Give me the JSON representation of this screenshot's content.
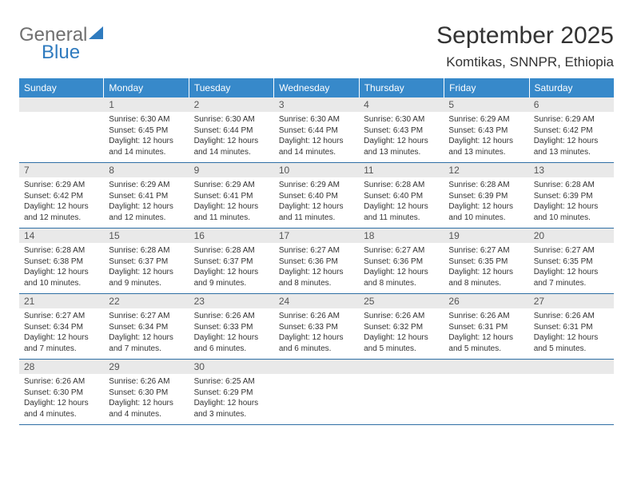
{
  "logo": {
    "word1": "General",
    "word2": "Blue",
    "gray_color": "#707070",
    "blue_color": "#2f7bbf"
  },
  "title": "September 2025",
  "location": "Komtikas, SNNPR, Ethiopia",
  "colors": {
    "header_bg": "#3789ca",
    "header_text": "#ffffff",
    "daynum_bg": "#e9e9e9",
    "text": "#333333",
    "week_border": "#2f6fa5"
  },
  "fonts": {
    "title_size": 30,
    "location_size": 17,
    "dayheader_size": 12,
    "body_size": 10
  },
  "day_headers": [
    "Sunday",
    "Monday",
    "Tuesday",
    "Wednesday",
    "Thursday",
    "Friday",
    "Saturday"
  ],
  "weeks": [
    [
      null,
      {
        "n": "1",
        "sr": "Sunrise: 6:30 AM",
        "ss": "Sunset: 6:45 PM",
        "dl": "Daylight: 12 hours and 14 minutes."
      },
      {
        "n": "2",
        "sr": "Sunrise: 6:30 AM",
        "ss": "Sunset: 6:44 PM",
        "dl": "Daylight: 12 hours and 14 minutes."
      },
      {
        "n": "3",
        "sr": "Sunrise: 6:30 AM",
        "ss": "Sunset: 6:44 PM",
        "dl": "Daylight: 12 hours and 14 minutes."
      },
      {
        "n": "4",
        "sr": "Sunrise: 6:30 AM",
        "ss": "Sunset: 6:43 PM",
        "dl": "Daylight: 12 hours and 13 minutes."
      },
      {
        "n": "5",
        "sr": "Sunrise: 6:29 AM",
        "ss": "Sunset: 6:43 PM",
        "dl": "Daylight: 12 hours and 13 minutes."
      },
      {
        "n": "6",
        "sr": "Sunrise: 6:29 AM",
        "ss": "Sunset: 6:42 PM",
        "dl": "Daylight: 12 hours and 13 minutes."
      }
    ],
    [
      {
        "n": "7",
        "sr": "Sunrise: 6:29 AM",
        "ss": "Sunset: 6:42 PM",
        "dl": "Daylight: 12 hours and 12 minutes."
      },
      {
        "n": "8",
        "sr": "Sunrise: 6:29 AM",
        "ss": "Sunset: 6:41 PM",
        "dl": "Daylight: 12 hours and 12 minutes."
      },
      {
        "n": "9",
        "sr": "Sunrise: 6:29 AM",
        "ss": "Sunset: 6:41 PM",
        "dl": "Daylight: 12 hours and 11 minutes."
      },
      {
        "n": "10",
        "sr": "Sunrise: 6:29 AM",
        "ss": "Sunset: 6:40 PM",
        "dl": "Daylight: 12 hours and 11 minutes."
      },
      {
        "n": "11",
        "sr": "Sunrise: 6:28 AM",
        "ss": "Sunset: 6:40 PM",
        "dl": "Daylight: 12 hours and 11 minutes."
      },
      {
        "n": "12",
        "sr": "Sunrise: 6:28 AM",
        "ss": "Sunset: 6:39 PM",
        "dl": "Daylight: 12 hours and 10 minutes."
      },
      {
        "n": "13",
        "sr": "Sunrise: 6:28 AM",
        "ss": "Sunset: 6:39 PM",
        "dl": "Daylight: 12 hours and 10 minutes."
      }
    ],
    [
      {
        "n": "14",
        "sr": "Sunrise: 6:28 AM",
        "ss": "Sunset: 6:38 PM",
        "dl": "Daylight: 12 hours and 10 minutes."
      },
      {
        "n": "15",
        "sr": "Sunrise: 6:28 AM",
        "ss": "Sunset: 6:37 PM",
        "dl": "Daylight: 12 hours and 9 minutes."
      },
      {
        "n": "16",
        "sr": "Sunrise: 6:28 AM",
        "ss": "Sunset: 6:37 PM",
        "dl": "Daylight: 12 hours and 9 minutes."
      },
      {
        "n": "17",
        "sr": "Sunrise: 6:27 AM",
        "ss": "Sunset: 6:36 PM",
        "dl": "Daylight: 12 hours and 8 minutes."
      },
      {
        "n": "18",
        "sr": "Sunrise: 6:27 AM",
        "ss": "Sunset: 6:36 PM",
        "dl": "Daylight: 12 hours and 8 minutes."
      },
      {
        "n": "19",
        "sr": "Sunrise: 6:27 AM",
        "ss": "Sunset: 6:35 PM",
        "dl": "Daylight: 12 hours and 8 minutes."
      },
      {
        "n": "20",
        "sr": "Sunrise: 6:27 AM",
        "ss": "Sunset: 6:35 PM",
        "dl": "Daylight: 12 hours and 7 minutes."
      }
    ],
    [
      {
        "n": "21",
        "sr": "Sunrise: 6:27 AM",
        "ss": "Sunset: 6:34 PM",
        "dl": "Daylight: 12 hours and 7 minutes."
      },
      {
        "n": "22",
        "sr": "Sunrise: 6:27 AM",
        "ss": "Sunset: 6:34 PM",
        "dl": "Daylight: 12 hours and 7 minutes."
      },
      {
        "n": "23",
        "sr": "Sunrise: 6:26 AM",
        "ss": "Sunset: 6:33 PM",
        "dl": "Daylight: 12 hours and 6 minutes."
      },
      {
        "n": "24",
        "sr": "Sunrise: 6:26 AM",
        "ss": "Sunset: 6:33 PM",
        "dl": "Daylight: 12 hours and 6 minutes."
      },
      {
        "n": "25",
        "sr": "Sunrise: 6:26 AM",
        "ss": "Sunset: 6:32 PM",
        "dl": "Daylight: 12 hours and 5 minutes."
      },
      {
        "n": "26",
        "sr": "Sunrise: 6:26 AM",
        "ss": "Sunset: 6:31 PM",
        "dl": "Daylight: 12 hours and 5 minutes."
      },
      {
        "n": "27",
        "sr": "Sunrise: 6:26 AM",
        "ss": "Sunset: 6:31 PM",
        "dl": "Daylight: 12 hours and 5 minutes."
      }
    ],
    [
      {
        "n": "28",
        "sr": "Sunrise: 6:26 AM",
        "ss": "Sunset: 6:30 PM",
        "dl": "Daylight: 12 hours and 4 minutes."
      },
      {
        "n": "29",
        "sr": "Sunrise: 6:26 AM",
        "ss": "Sunset: 6:30 PM",
        "dl": "Daylight: 12 hours and 4 minutes."
      },
      {
        "n": "30",
        "sr": "Sunrise: 6:25 AM",
        "ss": "Sunset: 6:29 PM",
        "dl": "Daylight: 12 hours and 3 minutes."
      },
      null,
      null,
      null,
      null
    ]
  ]
}
